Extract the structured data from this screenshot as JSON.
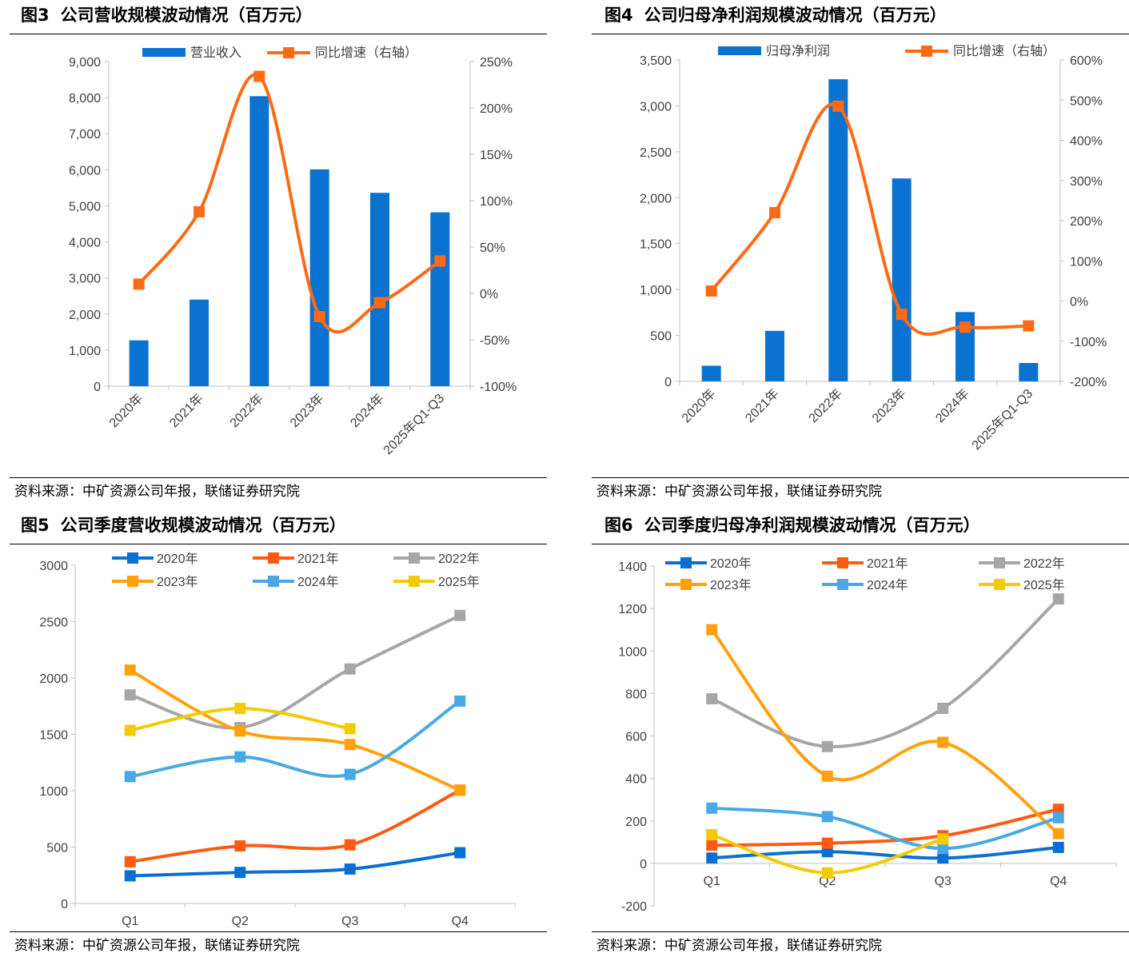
{
  "colors": {
    "bar": "#0a72d0",
    "growth": "#ff6a14",
    "axis": "#bfbfbf",
    "y2020": "#0a6fd3",
    "y2021": "#ff5a12",
    "y2022": "#a6a6a6",
    "y2023": "#ffa10a",
    "y2024": "#4aa8e4",
    "y2025": "#f2cb05"
  },
  "fig3": {
    "number": "图3",
    "title": "公司营收规模波动情况（百万元）",
    "source": "资料来源：中矿资源公司年报，联储证券研究院"
  },
  "fig4": {
    "number": "图4",
    "title": "公司归母净利润规模波动情况（百万元）",
    "source": "资料来源：中矿资源公司年报，联储证券研究院"
  },
  "fig5": {
    "number": "图5",
    "title": "公司季度营收规模波动情况（百万元）",
    "source": "资料来源：中矿资源公司年报，联储证券研究院"
  },
  "fig6": {
    "number": "图6",
    "title": "公司季度归母净利润规模波动情况（百万元）",
    "source": "资料来源：中矿资源公司年报，联储证券研究院"
  },
  "chart_data": [
    {
      "id": "fig3",
      "type": "bar",
      "categories": [
        "2020年",
        "2021年",
        "2022年",
        "2023年",
        "2024年",
        "2025年Q1-Q3"
      ],
      "series": [
        {
          "name": "营业收入",
          "type": "bar",
          "axis": "left",
          "values": [
            1270,
            2400,
            8040,
            6010,
            5360,
            4820
          ]
        },
        {
          "name": "同比增速（右轴）",
          "type": "line",
          "axis": "right",
          "values": [
            10,
            88,
            234,
            -25,
            -10,
            35
          ]
        }
      ],
      "ylim": [
        0,
        9000
      ],
      "yticks": [
        "0",
        "1,000",
        "2,000",
        "3,000",
        "4,000",
        "5,000",
        "6,000",
        "7,000",
        "8,000",
        "9,000"
      ],
      "y2lim": [
        -100,
        250
      ],
      "y2ticks": [
        "-100%",
        "-50%",
        "0%",
        "50%",
        "100%",
        "150%",
        "200%",
        "250%"
      ],
      "legend": "top"
    },
    {
      "id": "fig4",
      "type": "bar",
      "categories": [
        "2020年",
        "2021年",
        "2022年",
        "2023年",
        "2024年",
        "2025年Q1-Q3"
      ],
      "series": [
        {
          "name": "归母净利润",
          "type": "bar",
          "axis": "left",
          "values": [
            170,
            550,
            3290,
            2210,
            755,
            200
          ]
        },
        {
          "name": "同比增速（右轴）",
          "type": "line",
          "axis": "right",
          "values": [
            25,
            220,
            485,
            -33,
            -65,
            -62
          ]
        }
      ],
      "ylim": [
        0,
        3500
      ],
      "yticks": [
        "0",
        "500",
        "1,000",
        "1,500",
        "2,000",
        "2,500",
        "3,000",
        "3,500"
      ],
      "y2lim": [
        -200,
        600
      ],
      "y2ticks": [
        "-200%",
        "-100%",
        "0%",
        "100%",
        "200%",
        "300%",
        "400%",
        "500%",
        "600%"
      ],
      "legend": "top"
    },
    {
      "id": "fig5",
      "type": "line",
      "categories": [
        "Q1",
        "Q2",
        "Q3",
        "Q4"
      ],
      "series": [
        {
          "name": "2020年",
          "color": "y2020",
          "values": [
            245,
            275,
            305,
            450
          ]
        },
        {
          "name": "2021年",
          "color": "y2021",
          "values": [
            370,
            510,
            520,
            1005
          ]
        },
        {
          "name": "2022年",
          "color": "y2022",
          "values": [
            1850,
            1560,
            2080,
            2555
          ]
        },
        {
          "name": "2023年",
          "color": "y2023",
          "values": [
            2070,
            1530,
            1410,
            1005
          ]
        },
        {
          "name": "2024年",
          "color": "y2024",
          "values": [
            1125,
            1300,
            1145,
            1795
          ]
        },
        {
          "name": "2025年",
          "color": "y2025",
          "values": [
            1535,
            1730,
            1550,
            null
          ]
        }
      ],
      "ylim": [
        0,
        3000
      ],
      "yticks": [
        "0",
        "500",
        "1000",
        "1500",
        "2000",
        "2500",
        "3000"
      ],
      "legend": "top"
    },
    {
      "id": "fig6",
      "type": "line",
      "categories": [
        "Q1",
        "Q2",
        "Q3",
        "Q4"
      ],
      "series": [
        {
          "name": "2020年",
          "color": "y2020",
          "values": [
            25,
            55,
            25,
            75
          ]
        },
        {
          "name": "2021年",
          "color": "y2021",
          "values": [
            85,
            95,
            130,
            255
          ]
        },
        {
          "name": "2022年",
          "color": "y2022",
          "values": [
            775,
            550,
            730,
            1245
          ]
        },
        {
          "name": "2023年",
          "color": "y2023",
          "values": [
            1100,
            410,
            570,
            140
          ]
        },
        {
          "name": "2024年",
          "color": "y2024",
          "values": [
            260,
            220,
            70,
            215
          ]
        },
        {
          "name": "2025年",
          "color": "y2025",
          "values": [
            135,
            -45,
            115,
            null
          ]
        }
      ],
      "ylim": [
        -200,
        1400
      ],
      "yticks": [
        "-200",
        "0",
        "200",
        "400",
        "600",
        "800",
        "1000",
        "1200",
        "1400"
      ],
      "legend": "top"
    }
  ]
}
